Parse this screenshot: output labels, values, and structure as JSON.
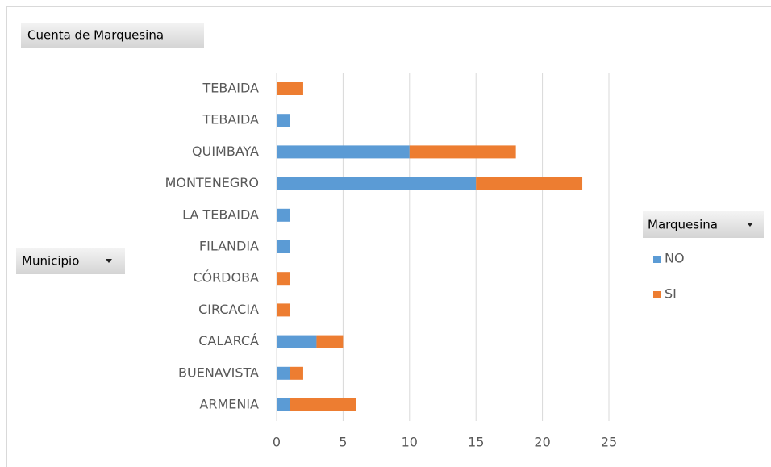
{
  "chart_data": {
    "type": "stacked_barh",
    "title": "Cuenta de Marquesina",
    "y_label": "Municipio",
    "legend_title": "Marquesina",
    "categories": [
      "ARMENIA",
      "BUENAVISTA ",
      "CALARCÁ",
      "CIRCACIA",
      "CÓRDOBA",
      "FILANDIA",
      "LA TEBAIDA",
      "MONTENEGRO",
      "QUIMBAYA",
      "TEBAIDA",
      "TEBAIDA "
    ],
    "series": [
      {
        "name": "NO",
        "color": "#5b9bd5",
        "values": [
          1,
          1,
          3,
          0,
          0,
          1,
          1,
          15,
          10,
          1,
          0
        ]
      },
      {
        "name": "SI",
        "color": "#ed7d31",
        "values": [
          5,
          1,
          2,
          1,
          1,
          0,
          0,
          8,
          8,
          0,
          2
        ]
      }
    ],
    "xlim": [
      0,
      25
    ],
    "xticks": [
      0,
      5,
      10,
      15,
      20,
      25
    ],
    "grid": true,
    "legend": "right"
  }
}
